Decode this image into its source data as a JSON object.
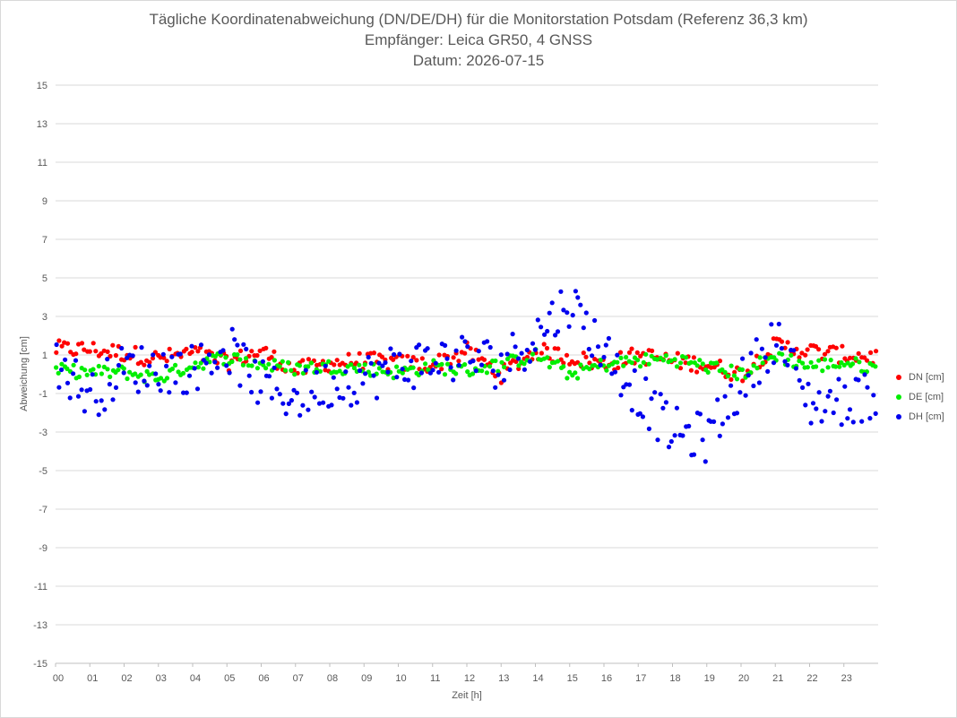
{
  "chart_data": {
    "type": "scatter",
    "title": "Tägliche Koordinatenabweichung (DN/DE/DH) für die Monitorstation Potsdam (Referenz 36,3 km)",
    "subtitle1": "Empfänger: Leica GR50, 4 GNSS",
    "subtitle2": "Datum: 2026-07-15",
    "xlabel": "Zeit [h]",
    "ylabel": "Abweichung [cm]",
    "xlim": [
      0,
      24
    ],
    "ylim": [
      -15,
      15
    ],
    "yticks": [
      15,
      13,
      11,
      9,
      7,
      5,
      3,
      1,
      -1,
      -3,
      -5,
      -7,
      -9,
      -11,
      -13,
      -15
    ],
    "xticks": [
      "00",
      "01",
      "02",
      "03",
      "04",
      "05",
      "06",
      "07",
      "08",
      "09",
      "10",
      "11",
      "12",
      "13",
      "14",
      "15",
      "16",
      "17",
      "18",
      "19",
      "20",
      "21",
      "22",
      "23"
    ],
    "grid": "horizontal",
    "legend_position": "right",
    "series": [
      {
        "name": "DN [cm]",
        "color": "#ff0000",
        "x": [
          0,
          1,
          2,
          3,
          4,
          5,
          6,
          7,
          8,
          9,
          10,
          11,
          12,
          13,
          14,
          15,
          16,
          17,
          18,
          19,
          20,
          21,
          22,
          23,
          24
        ],
        "y": [
          1.3,
          1.3,
          1.1,
          0.8,
          1.1,
          0.6,
          1.2,
          0.2,
          0.6,
          0.7,
          0.6,
          0.5,
          1.2,
          0.0,
          1.2,
          0.9,
          0.5,
          1.0,
          0.7,
          0.5,
          0.0,
          1.5,
          1.2,
          1.0,
          0.9
        ]
      },
      {
        "name": "DE [cm]",
        "color": "#00ee00",
        "x": [
          0,
          1,
          2,
          3,
          4,
          5,
          6,
          7,
          8,
          9,
          10,
          11,
          12,
          13,
          14,
          15,
          16,
          17,
          18,
          19,
          20,
          21,
          22,
          23,
          24
        ],
        "y": [
          0.2,
          0.1,
          0.1,
          -0.2,
          0.5,
          0.9,
          0.5,
          0.3,
          0.4,
          0.3,
          0.1,
          0.4,
          0.2,
          0.5,
          1.0,
          0.0,
          0.5,
          0.7,
          0.8,
          0.4,
          0.0,
          1.0,
          0.4,
          0.6,
          0.3
        ]
      },
      {
        "name": "DH [cm]",
        "color": "#0000ee",
        "x": [
          0,
          1,
          2,
          3,
          4,
          5,
          6,
          7,
          8,
          9,
          10,
          11,
          12,
          13,
          14,
          15,
          16,
          17,
          18,
          19,
          20,
          21,
          22,
          23,
          24
        ],
        "y": [
          0.8,
          -1.2,
          0.3,
          0.3,
          0.3,
          1.4,
          -0.6,
          -1.2,
          -0.5,
          -0.2,
          0.4,
          0.7,
          0.9,
          0.5,
          2.0,
          3.8,
          1.2,
          -1.0,
          -3.0,
          -3.3,
          -0.5,
          2.0,
          -1.5,
          -1.4,
          -1.0
        ]
      }
    ]
  }
}
